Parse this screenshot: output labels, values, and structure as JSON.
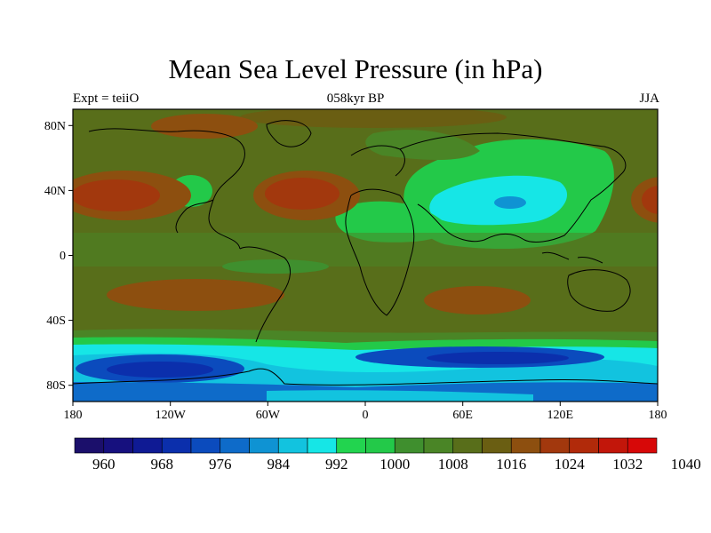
{
  "title": "Mean Sea Level Pressure (in hPa)",
  "subtitle_left": "Expt = teiiO",
  "subtitle_center": "058kyr BP",
  "subtitle_right": "JJA",
  "x_ticks": [
    "180",
    "120W",
    "60W",
    "0",
    "60E",
    "120E",
    "180"
  ],
  "y_ticks": [
    "80N",
    "40N",
    "0",
    "40S",
    "80S"
  ],
  "colorbar": {
    "labels": [
      "960",
      "968",
      "976",
      "984",
      "992",
      "1000",
      "1008",
      "1016",
      "1024",
      "1032",
      "1040"
    ],
    "colors": [
      "#1b0f6b",
      "#16107e",
      "#0f1a94",
      "#0b2fac",
      "#0b4bbd",
      "#0e6bc9",
      "#0f93d3",
      "#12c3df",
      "#16e6e6",
      "#22d44f",
      "#23c949",
      "#3f8f2e",
      "#4a8526",
      "#586e1a",
      "#6a5e12",
      "#8d4f0f",
      "#a2380d",
      "#b12a0a",
      "#c2160a",
      "#d70808"
    ]
  },
  "map": {
    "projection": "cylindrical-equidistant",
    "lon_range": [
      -180,
      180
    ],
    "lat_range": [
      -90,
      90
    ],
    "fill_levels": [
      "960-1040 hPa, 4 hPa interval"
    ]
  }
}
